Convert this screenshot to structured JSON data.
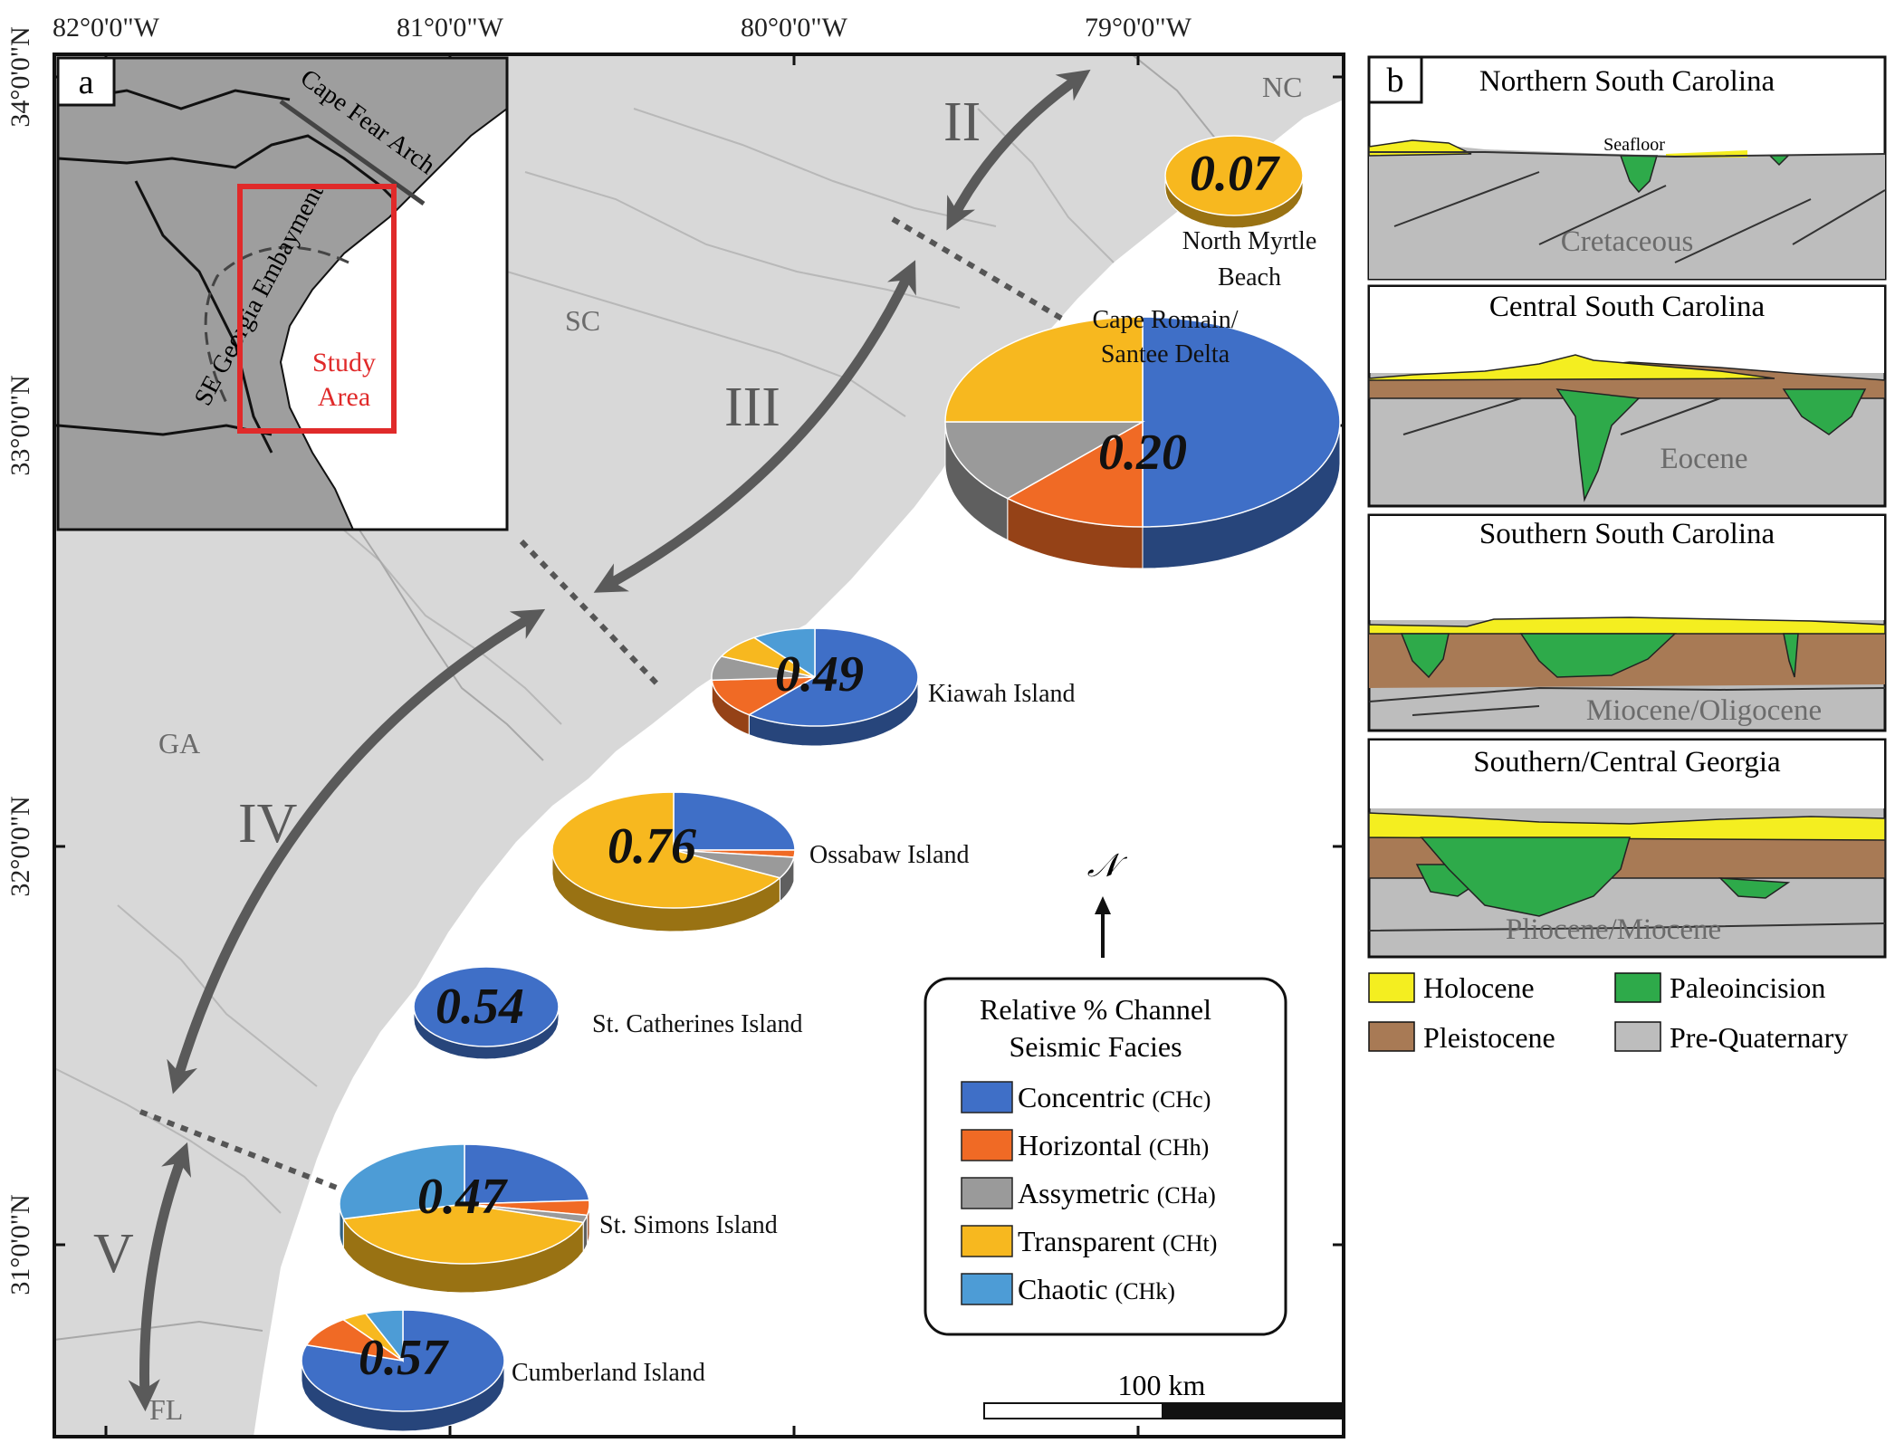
{
  "figure": {
    "coords_top": [
      "82°0'0\"W",
      "81°0'0\"W",
      "80°0'0\"W",
      "79°0'0\"W"
    ],
    "coords_left": [
      "34°0'0\"N",
      "33°0'0\"N",
      "32°0'0\"N",
      "31°0'0\"N"
    ],
    "colors": {
      "land": "#d8d8d8",
      "sea": "#ffffff",
      "region_arrow": "#5a5a5a",
      "study_box": "#e02a2a",
      "concentric": "#3f6fc7",
      "horizontal": "#f06a25",
      "assymetric": "#9a9a9a",
      "transparent": "#f7b81f",
      "chaotic": "#4d9cd6",
      "holocene": "#f4ee20",
      "pleistocene": "#a87a55",
      "paleoincision": "#2eaa4a",
      "pre_quaternary": "#bdbdbd"
    }
  },
  "panel_a": {
    "label": "a",
    "state_labels": [
      "NC",
      "SC",
      "GA",
      "FL"
    ],
    "region_labels": [
      "II",
      "III",
      "IV",
      "V"
    ],
    "north_symbol": "𝒩",
    "inset": {
      "arch_label": "Cape Fear Arch",
      "embayment_label": "SE Georgia Embayment",
      "study_label_1": "Study",
      "study_label_2": "Area"
    },
    "sites": [
      {
        "name": "North Myrtle Beach",
        "name_lines": [
          "North Myrtle",
          "Beach"
        ],
        "value_label": "0.07",
        "facies_percent": {
          "concentric": 0,
          "horizontal": 0,
          "assymetric": 0,
          "transparent": 100,
          "chaotic": 0
        }
      },
      {
        "name": "Cape Romain/ Santee Delta",
        "name_lines": [
          "Cape Romain/",
          "Santee Delta"
        ],
        "value_label": "0.20",
        "facies_percent": {
          "concentric": 50,
          "horizontal": 12,
          "assymetric": 13,
          "transparent": 25,
          "chaotic": 0
        }
      },
      {
        "name": "Kiawah Island",
        "name_lines": [
          "Kiawah Island"
        ],
        "value_label": "0.49",
        "facies_percent": {
          "concentric": 61,
          "horizontal": 13,
          "assymetric": 8,
          "transparent": 8,
          "chaotic": 10
        }
      },
      {
        "name": "Ossabaw Island",
        "name_lines": [
          "Ossabaw Island"
        ],
        "value_label": "0.76",
        "facies_percent": {
          "concentric": 25,
          "horizontal": 2,
          "assymetric": 6,
          "transparent": 67,
          "chaotic": 0
        }
      },
      {
        "name": "St. Catherines Island",
        "name_lines": [
          "St. Catherines Island"
        ],
        "value_label": "0.54",
        "facies_percent": {
          "concentric": 100,
          "horizontal": 0,
          "assymetric": 0,
          "transparent": 0,
          "chaotic": 0
        }
      },
      {
        "name": "St. Simons Island",
        "name_lines": [
          "St. Simons Island"
        ],
        "value_label": "0.47",
        "facies_percent": {
          "concentric": 24,
          "horizontal": 4,
          "assymetric": 2,
          "transparent": 41,
          "chaotic": 29
        }
      },
      {
        "name": "Cumberland Island",
        "name_lines": [
          "Cumberland Island"
        ],
        "value_label": "0.57",
        "facies_percent": {
          "concentric": 80,
          "horizontal": 10,
          "assymetric": 0,
          "transparent": 4,
          "chaotic": 6
        }
      }
    ],
    "legend": {
      "title_1": "Relative % Channel",
      "title_2": "Seismic Facies",
      "items": [
        {
          "key": "concentric",
          "label": "Concentric",
          "code": "(CHc)"
        },
        {
          "key": "horizontal",
          "label": "Horizontal",
          "code": "(CHh)"
        },
        {
          "key": "assymetric",
          "label": "Assymetric",
          "code": "(CHa)"
        },
        {
          "key": "transparent",
          "label": "Transparent",
          "code": "(CHt)"
        },
        {
          "key": "chaotic",
          "label": "Chaotic",
          "code": "(CHk)"
        }
      ]
    },
    "scale_label": "100 km"
  },
  "panel_b": {
    "label": "b",
    "seafloor_label": "Seafloor",
    "sections": [
      {
        "title": "Northern South Carolina",
        "unit": "Cretaceous"
      },
      {
        "title": "Central South Carolina",
        "unit": "Eocene"
      },
      {
        "title": "Southern South Carolina",
        "unit": "Miocene/Oligocene"
      },
      {
        "title": "Southern/Central Georgia",
        "unit": "Pliocene/Miocene"
      }
    ],
    "legend": [
      {
        "key": "holocene",
        "label": "Holocene"
      },
      {
        "key": "paleoincision",
        "label": "Paleoincision"
      },
      {
        "key": "pleistocene",
        "label": "Pleistocene"
      },
      {
        "key": "pre_quaternary",
        "label": "Pre-Quaternary"
      }
    ]
  }
}
